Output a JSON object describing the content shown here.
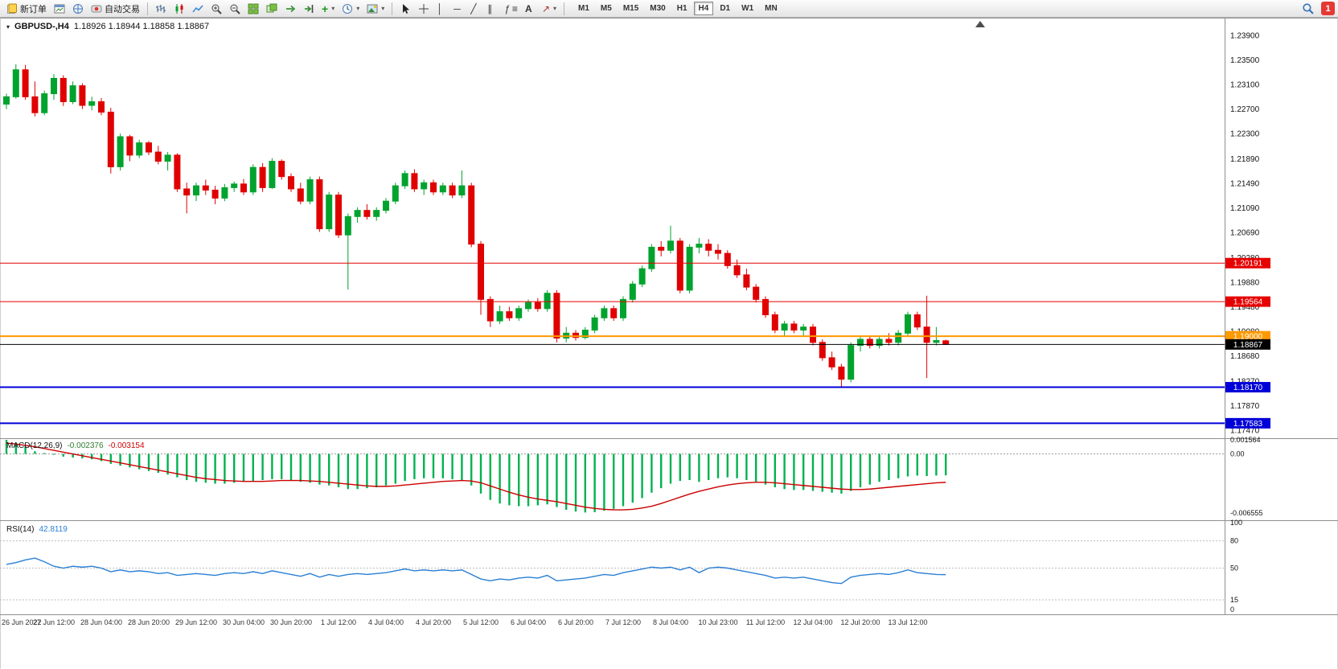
{
  "toolbar": {
    "new_order_label": "新订单",
    "auto_trading_label": "自动交易",
    "timeframes": [
      "M1",
      "M5",
      "M15",
      "M30",
      "H1",
      "H4",
      "D1",
      "W1",
      "MN"
    ],
    "active_timeframe": "H4",
    "notification_count": "1",
    "glyphs": {
      "dropdown": "▾",
      "plus": "+",
      "minus": "−",
      "vertical_line": "│",
      "horizontal_line": "─",
      "trendline": "╱",
      "channel": "∥",
      "fibonacci": "ƒ",
      "levels": "≡",
      "text_tool": "A",
      "arrows": "↗"
    }
  },
  "chart": {
    "symbol_period": "GBPUSD-,H4",
    "ohlc_text": "1.18926 1.18944 1.18858 1.18867"
  },
  "chart_data": {
    "type": "candlestick",
    "symbol": "GBPUSD-",
    "period": "H4",
    "colors": {
      "up": "#00A32E",
      "down": "#E00000",
      "macd_hist": "#00B250",
      "macd_value": "#2F7D2F",
      "macd_signal": "#CC0000",
      "rsi_line": "#2A7FD4",
      "level_red": "#E60000",
      "level_orange": "#FF9900",
      "level_blue": "#0000D8",
      "current_black": "#000000"
    },
    "price_axis": {
      "max": 1.239,
      "min": 1.1747,
      "labels": [
        "1.23900",
        "1.23500",
        "1.23100",
        "1.22700",
        "1.22300",
        "1.21890",
        "1.21490",
        "1.21090",
        "1.20690",
        "1.20280",
        "1.19880",
        "1.19480",
        "1.19080",
        "1.18680",
        "1.18270",
        "1.17870",
        "1.17470"
      ]
    },
    "hlines": [
      {
        "price": 1.20191,
        "label": "1.20191",
        "color": "#E60000",
        "width": 1
      },
      {
        "price": 1.19564,
        "label": "1.19564",
        "color": "#E60000",
        "width": 1
      },
      {
        "price": 1.19,
        "label": "1.19000",
        "color": "#FF9900",
        "width": 2
      },
      {
        "price": 1.1817,
        "label": "1.18170",
        "color": "#0000D8",
        "width": 2
      },
      {
        "price": 1.17583,
        "label": "1.17583",
        "color": "#0000D8",
        "width": 2
      }
    ],
    "current_price": {
      "price": 1.18867,
      "label": "1.18867"
    },
    "candles": [
      [
        1.2278,
        1.2295,
        1.227,
        1.229
      ],
      [
        1.229,
        1.2343,
        1.2287,
        1.2334
      ],
      [
        1.2334,
        1.2342,
        1.2285,
        1.229
      ],
      [
        1.229,
        1.2315,
        1.2258,
        1.2264
      ],
      [
        1.2264,
        1.23,
        1.226,
        1.2295
      ],
      [
        1.2295,
        1.2327,
        1.2285,
        1.232
      ],
      [
        1.232,
        1.2325,
        1.2275,
        1.2282
      ],
      [
        1.2282,
        1.2315,
        1.2278,
        1.2308
      ],
      [
        1.2308,
        1.2312,
        1.227,
        1.2276
      ],
      [
        1.2276,
        1.229,
        1.2268,
        1.2282
      ],
      [
        1.2282,
        1.2288,
        1.226,
        1.2265
      ],
      [
        1.2265,
        1.2272,
        1.2165,
        1.2176
      ],
      [
        1.2176,
        1.223,
        1.217,
        1.2225
      ],
      [
        1.2225,
        1.2228,
        1.2185,
        1.2195
      ],
      [
        1.2195,
        1.222,
        1.219,
        1.2215
      ],
      [
        1.2215,
        1.2218,
        1.2195,
        1.22
      ],
      [
        1.22,
        1.221,
        1.218,
        1.2185
      ],
      [
        1.2185,
        1.22,
        1.217,
        1.2195
      ],
      [
        1.2195,
        1.2198,
        1.2135,
        1.214
      ],
      [
        1.214,
        1.215,
        1.21,
        1.213
      ],
      [
        1.213,
        1.215,
        1.212,
        1.2145
      ],
      [
        1.2145,
        1.2155,
        1.213,
        1.2138
      ],
      [
        1.2138,
        1.2145,
        1.2115,
        1.2125
      ],
      [
        1.2125,
        1.2148,
        1.212,
        1.2142
      ],
      [
        1.2142,
        1.2152,
        1.2135,
        1.2148
      ],
      [
        1.2148,
        1.2156,
        1.213,
        1.2135
      ],
      [
        1.2135,
        1.218,
        1.213,
        1.2175
      ],
      [
        1.2175,
        1.2182,
        1.2135,
        1.2142
      ],
      [
        1.2142,
        1.219,
        1.214,
        1.2185
      ],
      [
        1.2185,
        1.2188,
        1.2155,
        1.216
      ],
      [
        1.216,
        1.2165,
        1.2135,
        1.214
      ],
      [
        1.214,
        1.215,
        1.2115,
        1.212
      ],
      [
        1.212,
        1.216,
        1.2115,
        1.2155
      ],
      [
        1.2155,
        1.216,
        1.207,
        1.2075
      ],
      [
        1.2075,
        1.2135,
        1.207,
        1.213
      ],
      [
        1.213,
        1.2135,
        1.206,
        1.2065
      ],
      [
        1.2065,
        1.21,
        1.1976,
        1.2095
      ],
      [
        1.2095,
        1.211,
        1.2085,
        1.2105
      ],
      [
        1.2105,
        1.2115,
        1.209,
        1.2095
      ],
      [
        1.2095,
        1.211,
        1.2088,
        1.2105
      ],
      [
        1.2105,
        1.2125,
        1.21,
        1.212
      ],
      [
        1.212,
        1.215,
        1.2115,
        1.2145
      ],
      [
        1.2145,
        1.217,
        1.214,
        1.2165
      ],
      [
        1.2165,
        1.2172,
        1.2135,
        1.214
      ],
      [
        1.214,
        1.2155,
        1.213,
        1.215
      ],
      [
        1.215,
        1.2155,
        1.213,
        1.2135
      ],
      [
        1.2135,
        1.215,
        1.213,
        1.2145
      ],
      [
        1.2145,
        1.215,
        1.2125,
        1.213
      ],
      [
        1.213,
        1.217,
        1.2125,
        1.2145
      ],
      [
        1.2145,
        1.215,
        1.2045,
        1.205
      ],
      [
        1.205,
        1.2055,
        1.1935,
        1.196
      ],
      [
        1.196,
        1.1965,
        1.1915,
        1.1925
      ],
      [
        1.1925,
        1.195,
        1.192,
        1.194
      ],
      [
        1.194,
        1.1948,
        1.1925,
        1.193
      ],
      [
        1.193,
        1.195,
        1.1925,
        1.1945
      ],
      [
        1.1945,
        1.196,
        1.194,
        1.1955
      ],
      [
        1.1955,
        1.1962,
        1.194,
        1.1945
      ],
      [
        1.1945,
        1.1975,
        1.194,
        1.197
      ],
      [
        1.197,
        1.1975,
        1.189,
        1.1897
      ],
      [
        1.1897,
        1.1915,
        1.189,
        1.1905
      ],
      [
        1.1905,
        1.191,
        1.1893,
        1.1898
      ],
      [
        1.1898,
        1.1915,
        1.1895,
        1.191
      ],
      [
        1.191,
        1.1935,
        1.1905,
        1.193
      ],
      [
        1.193,
        1.195,
        1.1925,
        1.1945
      ],
      [
        1.1945,
        1.195,
        1.1925,
        1.193
      ],
      [
        1.193,
        1.1965,
        1.1925,
        1.196
      ],
      [
        1.196,
        1.199,
        1.1955,
        1.1985
      ],
      [
        1.1985,
        1.2015,
        1.198,
        1.201
      ],
      [
        1.201,
        1.205,
        1.2005,
        1.2045
      ],
      [
        1.2045,
        1.2055,
        1.203,
        1.204
      ],
      [
        1.204,
        1.208,
        1.2035,
        1.2055
      ],
      [
        1.2055,
        1.206,
        1.197,
        1.1975
      ],
      [
        1.1975,
        1.205,
        1.197,
        1.2045
      ],
      [
        1.2045,
        1.206,
        1.2035,
        1.205
      ],
      [
        1.205,
        1.2058,
        1.203,
        1.204
      ],
      [
        1.204,
        1.205,
        1.2025,
        1.2035
      ],
      [
        1.2035,
        1.204,
        1.201,
        1.2015
      ],
      [
        1.2015,
        1.2025,
        1.1995,
        1.2
      ],
      [
        1.2,
        1.201,
        1.1975,
        1.198
      ],
      [
        1.198,
        1.1985,
        1.1955,
        1.196
      ],
      [
        1.196,
        1.1965,
        1.193,
        1.1935
      ],
      [
        1.1935,
        1.194,
        1.1905,
        1.191
      ],
      [
        1.191,
        1.1925,
        1.19,
        1.192
      ],
      [
        1.192,
        1.1925,
        1.1905,
        1.191
      ],
      [
        1.191,
        1.192,
        1.19,
        1.1915
      ],
      [
        1.1915,
        1.192,
        1.1885,
        1.189
      ],
      [
        1.189,
        1.1895,
        1.186,
        1.1865
      ],
      [
        1.1865,
        1.1875,
        1.1845,
        1.185
      ],
      [
        1.185,
        1.1855,
        1.1817,
        1.183
      ],
      [
        1.183,
        1.189,
        1.1825,
        1.1885
      ],
      [
        1.1885,
        1.19,
        1.1875,
        1.1895
      ],
      [
        1.1895,
        1.19,
        1.188,
        1.1885
      ],
      [
        1.1885,
        1.19,
        1.188,
        1.1895
      ],
      [
        1.1895,
        1.1905,
        1.1885,
        1.189
      ],
      [
        1.189,
        1.191,
        1.1885,
        1.1905
      ],
      [
        1.1905,
        1.194,
        1.19,
        1.1935
      ],
      [
        1.1935,
        1.194,
        1.191,
        1.1915
      ],
      [
        1.1915,
        1.1966,
        1.1832,
        1.189
      ],
      [
        1.189,
        1.1915,
        1.1885,
        1.1893
      ],
      [
        1.18926,
        1.18944,
        1.18858,
        1.18867
      ]
    ],
    "macd": {
      "title": "MACD(12,26,9)",
      "main_value": "-0.002376",
      "signal_value": "-0.003154",
      "max": 0.001564,
      "min": -0.006555,
      "axis_labels": [
        {
          "v": 0.001564,
          "t": "0.001564"
        },
        {
          "v": 0,
          "t": "0.00"
        },
        {
          "v": -0.006555,
          "t": "-0.006555"
        }
      ],
      "hist": [
        0.00156,
        0.0012,
        0.0008,
        0.0003,
        0.0001,
        -0.0001,
        -0.0003,
        -0.0004,
        -0.0005,
        -0.0006,
        -0.0008,
        -0.0011,
        -0.0013,
        -0.0015,
        -0.0017,
        -0.0019,
        -0.0021,
        -0.0023,
        -0.0026,
        -0.0029,
        -0.0031,
        -0.0032,
        -0.0033,
        -0.0033,
        -0.0032,
        -0.0031,
        -0.003,
        -0.0029,
        -0.0028,
        -0.0028,
        -0.0029,
        -0.0031,
        -0.0032,
        -0.0034,
        -0.0035,
        -0.0037,
        -0.0039,
        -0.0039,
        -0.0038,
        -0.0037,
        -0.0035,
        -0.0033,
        -0.003,
        -0.0028,
        -0.0027,
        -0.0027,
        -0.0027,
        -0.0028,
        -0.0029,
        -0.0035,
        -0.0044,
        -0.0051,
        -0.0055,
        -0.0057,
        -0.0058,
        -0.0058,
        -0.0057,
        -0.0056,
        -0.0059,
        -0.0062,
        -0.0064,
        -0.0065,
        -0.00646,
        -0.0063,
        -0.0061,
        -0.0058,
        -0.0054,
        -0.0049,
        -0.0043,
        -0.0038,
        -0.0033,
        -0.003,
        -0.0029,
        -0.0031,
        -0.0029,
        -0.0027,
        -0.0026,
        -0.0027,
        -0.0029,
        -0.0031,
        -0.0034,
        -0.0037,
        -0.0039,
        -0.004,
        -0.004,
        -0.0041,
        -0.0042,
        -0.0043,
        -0.0044,
        -0.0041,
        -0.0037,
        -0.0034,
        -0.0031,
        -0.0029,
        -0.0027,
        -0.0025,
        -0.0024,
        -0.00245,
        -0.0024,
        -0.002376
      ],
      "signal": [
        0.0012,
        0.0011,
        0.00095,
        0.0008,
        0.0006,
        0.0004,
        0.0002,
        0.0,
        -0.0002,
        -0.0004,
        -0.0006,
        -0.0008,
        -0.001,
        -0.0012,
        -0.0014,
        -0.0016,
        -0.0018,
        -0.002,
        -0.0022,
        -0.0024,
        -0.0026,
        -0.00275,
        -0.00285,
        -0.00295,
        -0.003,
        -0.00305,
        -0.00305,
        -0.00305,
        -0.003,
        -0.00295,
        -0.00295,
        -0.00295,
        -0.003,
        -0.00305,
        -0.00315,
        -0.00325,
        -0.00335,
        -0.00345,
        -0.00355,
        -0.0036,
        -0.0036,
        -0.00355,
        -0.00345,
        -0.00335,
        -0.00325,
        -0.00315,
        -0.00305,
        -0.003,
        -0.00295,
        -0.003,
        -0.0032,
        -0.00355,
        -0.0039,
        -0.00425,
        -0.00455,
        -0.0048,
        -0.005,
        -0.00515,
        -0.0053,
        -0.0055,
        -0.0057,
        -0.0059,
        -0.00605,
        -0.00615,
        -0.0062,
        -0.0062,
        -0.00615,
        -0.006,
        -0.0058,
        -0.0055,
        -0.00515,
        -0.0048,
        -0.00445,
        -0.00415,
        -0.0039,
        -0.00365,
        -0.00345,
        -0.0033,
        -0.0032,
        -0.00315,
        -0.00315,
        -0.0032,
        -0.0033,
        -0.0034,
        -0.0035,
        -0.0036,
        -0.0037,
        -0.0038,
        -0.0039,
        -0.00395,
        -0.00395,
        -0.0039,
        -0.0038,
        -0.0037,
        -0.0036,
        -0.0035,
        -0.0034,
        -0.0033,
        -0.0032,
        -0.003154
      ]
    },
    "rsi": {
      "title": "RSI(14)",
      "value": "42.8119",
      "levels": [
        80,
        50,
        15
      ],
      "axis_labels": [
        {
          "v": 100,
          "t": "100"
        },
        {
          "v": 80,
          "t": "80"
        },
        {
          "v": 50,
          "t": "50"
        },
        {
          "v": 15,
          "t": "15"
        },
        {
          "v": 0,
          "t": "0"
        }
      ],
      "values": [
        54,
        56,
        59,
        61,
        57,
        52,
        50,
        52,
        51,
        52,
        50,
        46,
        48,
        46,
        47,
        46,
        44,
        45,
        42,
        43,
        44,
        43,
        42,
        44,
        45,
        44,
        46,
        44,
        47,
        45,
        43,
        41,
        44,
        40,
        43,
        41,
        43,
        44,
        43,
        44,
        45,
        47,
        49,
        47,
        48,
        47,
        48,
        47,
        48,
        43,
        38,
        36,
        38,
        37,
        39,
        40,
        39,
        42,
        36,
        37,
        38,
        39,
        41,
        43,
        42,
        45,
        47,
        49,
        51,
        50,
        51,
        48,
        51,
        45,
        50,
        51,
        50,
        48,
        46,
        44,
        42,
        39,
        40,
        39,
        40,
        38,
        36,
        34,
        33,
        40,
        42,
        43,
        44,
        43,
        45,
        48,
        45,
        44,
        43,
        42.81
      ]
    },
    "time_axis": [
      "26 Jun 2022",
      "27 Jun 12:00",
      "28 Jun 04:00",
      "28 Jun 20:00",
      "29 Jun 12:00",
      "30 Jun 04:00",
      "30 Jun 20:00",
      "1 Jul 12:00",
      "4 Jul 04:00",
      "4 Jul 20:00",
      "5 Jul 12:00",
      "6 Jul 04:00",
      "6 Jul 20:00",
      "7 Jul 12:00",
      "8 Jul 04:00",
      "10 Jul 23:00",
      "11 Jul 12:00",
      "12 Jul 04:00",
      "12 Jul 20:00",
      "13 Jul 12:00"
    ]
  }
}
